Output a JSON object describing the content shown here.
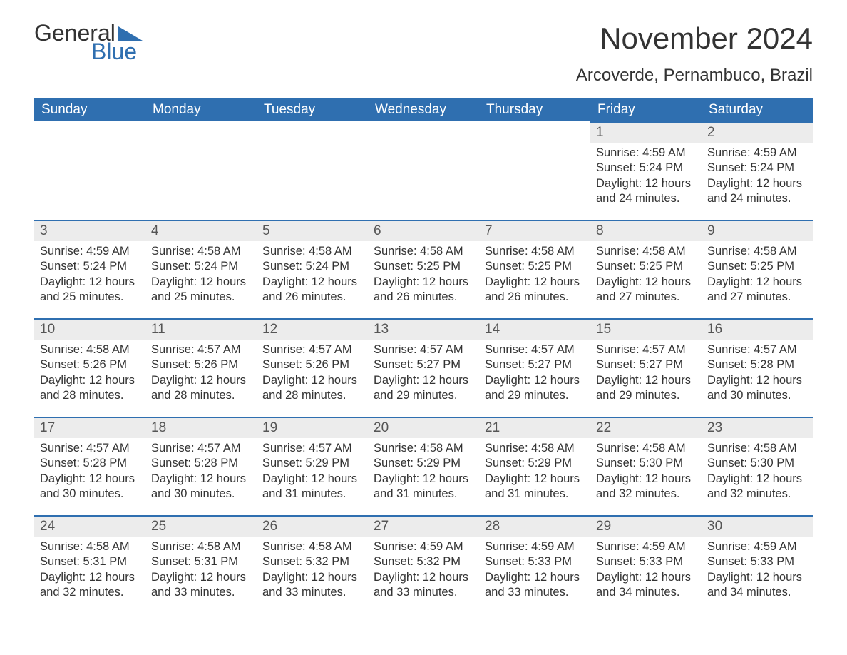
{
  "logo": {
    "general": "General",
    "blue": "Blue",
    "tri_color": "#2f6fb0"
  },
  "title": "November 2024",
  "location": "Arcoverde, Pernambuco, Brazil",
  "colors": {
    "header_bg": "#2f6fb0",
    "header_text": "#ffffff",
    "daynum_bg": "#ececec",
    "daynum_border": "#2f6fb0",
    "body_text": "#333333"
  },
  "dayHeaders": [
    "Sunday",
    "Monday",
    "Tuesday",
    "Wednesday",
    "Thursday",
    "Friday",
    "Saturday"
  ],
  "weeks": [
    [
      {
        "empty": true
      },
      {
        "empty": true
      },
      {
        "empty": true
      },
      {
        "empty": true
      },
      {
        "empty": true
      },
      {
        "num": "1",
        "sunrise": "Sunrise: 4:59 AM",
        "sunset": "Sunset: 5:24 PM",
        "daylight": "Daylight: 12 hours and 24 minutes."
      },
      {
        "num": "2",
        "sunrise": "Sunrise: 4:59 AM",
        "sunset": "Sunset: 5:24 PM",
        "daylight": "Daylight: 12 hours and 24 minutes."
      }
    ],
    [
      {
        "num": "3",
        "sunrise": "Sunrise: 4:59 AM",
        "sunset": "Sunset: 5:24 PM",
        "daylight": "Daylight: 12 hours and 25 minutes."
      },
      {
        "num": "4",
        "sunrise": "Sunrise: 4:58 AM",
        "sunset": "Sunset: 5:24 PM",
        "daylight": "Daylight: 12 hours and 25 minutes."
      },
      {
        "num": "5",
        "sunrise": "Sunrise: 4:58 AM",
        "sunset": "Sunset: 5:24 PM",
        "daylight": "Daylight: 12 hours and 26 minutes."
      },
      {
        "num": "6",
        "sunrise": "Sunrise: 4:58 AM",
        "sunset": "Sunset: 5:25 PM",
        "daylight": "Daylight: 12 hours and 26 minutes."
      },
      {
        "num": "7",
        "sunrise": "Sunrise: 4:58 AM",
        "sunset": "Sunset: 5:25 PM",
        "daylight": "Daylight: 12 hours and 26 minutes."
      },
      {
        "num": "8",
        "sunrise": "Sunrise: 4:58 AM",
        "sunset": "Sunset: 5:25 PM",
        "daylight": "Daylight: 12 hours and 27 minutes."
      },
      {
        "num": "9",
        "sunrise": "Sunrise: 4:58 AM",
        "sunset": "Sunset: 5:25 PM",
        "daylight": "Daylight: 12 hours and 27 minutes."
      }
    ],
    [
      {
        "num": "10",
        "sunrise": "Sunrise: 4:58 AM",
        "sunset": "Sunset: 5:26 PM",
        "daylight": "Daylight: 12 hours and 28 minutes."
      },
      {
        "num": "11",
        "sunrise": "Sunrise: 4:57 AM",
        "sunset": "Sunset: 5:26 PM",
        "daylight": "Daylight: 12 hours and 28 minutes."
      },
      {
        "num": "12",
        "sunrise": "Sunrise: 4:57 AM",
        "sunset": "Sunset: 5:26 PM",
        "daylight": "Daylight: 12 hours and 28 minutes."
      },
      {
        "num": "13",
        "sunrise": "Sunrise: 4:57 AM",
        "sunset": "Sunset: 5:27 PM",
        "daylight": "Daylight: 12 hours and 29 minutes."
      },
      {
        "num": "14",
        "sunrise": "Sunrise: 4:57 AM",
        "sunset": "Sunset: 5:27 PM",
        "daylight": "Daylight: 12 hours and 29 minutes."
      },
      {
        "num": "15",
        "sunrise": "Sunrise: 4:57 AM",
        "sunset": "Sunset: 5:27 PM",
        "daylight": "Daylight: 12 hours and 29 minutes."
      },
      {
        "num": "16",
        "sunrise": "Sunrise: 4:57 AM",
        "sunset": "Sunset: 5:28 PM",
        "daylight": "Daylight: 12 hours and 30 minutes."
      }
    ],
    [
      {
        "num": "17",
        "sunrise": "Sunrise: 4:57 AM",
        "sunset": "Sunset: 5:28 PM",
        "daylight": "Daylight: 12 hours and 30 minutes."
      },
      {
        "num": "18",
        "sunrise": "Sunrise: 4:57 AM",
        "sunset": "Sunset: 5:28 PM",
        "daylight": "Daylight: 12 hours and 30 minutes."
      },
      {
        "num": "19",
        "sunrise": "Sunrise: 4:57 AM",
        "sunset": "Sunset: 5:29 PM",
        "daylight": "Daylight: 12 hours and 31 minutes."
      },
      {
        "num": "20",
        "sunrise": "Sunrise: 4:58 AM",
        "sunset": "Sunset: 5:29 PM",
        "daylight": "Daylight: 12 hours and 31 minutes."
      },
      {
        "num": "21",
        "sunrise": "Sunrise: 4:58 AM",
        "sunset": "Sunset: 5:29 PM",
        "daylight": "Daylight: 12 hours and 31 minutes."
      },
      {
        "num": "22",
        "sunrise": "Sunrise: 4:58 AM",
        "sunset": "Sunset: 5:30 PM",
        "daylight": "Daylight: 12 hours and 32 minutes."
      },
      {
        "num": "23",
        "sunrise": "Sunrise: 4:58 AM",
        "sunset": "Sunset: 5:30 PM",
        "daylight": "Daylight: 12 hours and 32 minutes."
      }
    ],
    [
      {
        "num": "24",
        "sunrise": "Sunrise: 4:58 AM",
        "sunset": "Sunset: 5:31 PM",
        "daylight": "Daylight: 12 hours and 32 minutes."
      },
      {
        "num": "25",
        "sunrise": "Sunrise: 4:58 AM",
        "sunset": "Sunset: 5:31 PM",
        "daylight": "Daylight: 12 hours and 33 minutes."
      },
      {
        "num": "26",
        "sunrise": "Sunrise: 4:58 AM",
        "sunset": "Sunset: 5:32 PM",
        "daylight": "Daylight: 12 hours and 33 minutes."
      },
      {
        "num": "27",
        "sunrise": "Sunrise: 4:59 AM",
        "sunset": "Sunset: 5:32 PM",
        "daylight": "Daylight: 12 hours and 33 minutes."
      },
      {
        "num": "28",
        "sunrise": "Sunrise: 4:59 AM",
        "sunset": "Sunset: 5:33 PM",
        "daylight": "Daylight: 12 hours and 33 minutes."
      },
      {
        "num": "29",
        "sunrise": "Sunrise: 4:59 AM",
        "sunset": "Sunset: 5:33 PM",
        "daylight": "Daylight: 12 hours and 34 minutes."
      },
      {
        "num": "30",
        "sunrise": "Sunrise: 4:59 AM",
        "sunset": "Sunset: 5:33 PM",
        "daylight": "Daylight: 12 hours and 34 minutes."
      }
    ]
  ]
}
